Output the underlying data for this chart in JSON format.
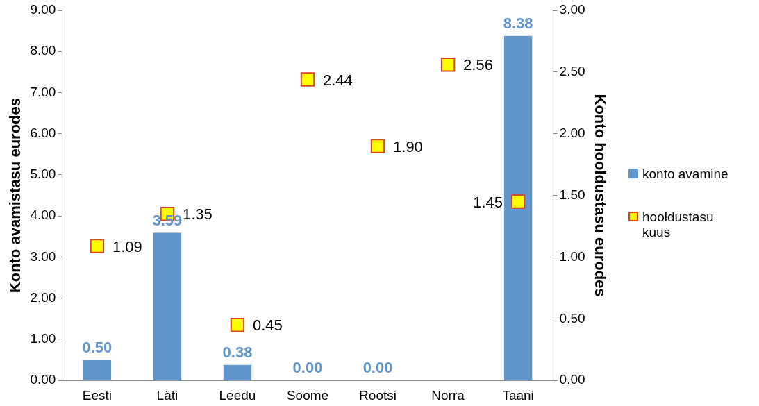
{
  "chart_data": {
    "type": "bar",
    "ylabel": "Konto avamistasu eurodes",
    "y2label": "Konto hooldustasu eurodes",
    "categories": [
      "Eesti",
      "Läti",
      "Leedu",
      "Soome",
      "Rootsi",
      "Norra",
      "Taani"
    ],
    "series": [
      {
        "name": "konto avamine",
        "color": "#6096cc",
        "values": [
          0.5,
          3.59,
          0.38,
          0,
          0,
          null,
          8.38
        ],
        "value_labels": [
          "0.50",
          "3.59",
          "0.38",
          "0.00",
          "0.00",
          null,
          "8.38"
        ]
      },
      {
        "name": "hooldustasu kuus",
        "type": "scatter",
        "axis": "y2",
        "color": "#ffff00",
        "marker": "square",
        "values": [
          1.09,
          1.35,
          0.45,
          2.44,
          1.9,
          2.56,
          1.45
        ],
        "value_labels": [
          "1.09",
          "1.35",
          "0.45",
          "2.44",
          "1.90",
          "2.56",
          "1.45"
        ]
      }
    ],
    "ylim": [
      0,
      9
    ],
    "yticks": [
      {
        "value": 0,
        "label": "0.00"
      },
      {
        "value": 1,
        "label": "1.00"
      },
      {
        "value": 2,
        "label": "2.00"
      },
      {
        "value": 3,
        "label": "3.00"
      },
      {
        "value": 4,
        "label": "4.00"
      },
      {
        "value": 5,
        "label": "5.00"
      },
      {
        "value": 6,
        "label": "6.00"
      },
      {
        "value": 7,
        "label": "7.00"
      },
      {
        "value": 8,
        "label": "8.00"
      },
      {
        "value": 9,
        "label": "9.00"
      }
    ],
    "y2lim": [
      0,
      3
    ],
    "y2ticks": [
      {
        "value": 0,
        "label": "0.00"
      },
      {
        "value": 0.5,
        "label": "0.50"
      },
      {
        "value": 1,
        "label": "1.00"
      },
      {
        "value": 1.5,
        "label": "1.50"
      },
      {
        "value": 2,
        "label": "2.00"
      },
      {
        "value": 2.5,
        "label": "2.50"
      },
      {
        "value": 3,
        "label": "3.00"
      }
    ],
    "grid": false,
    "legend": "right"
  }
}
